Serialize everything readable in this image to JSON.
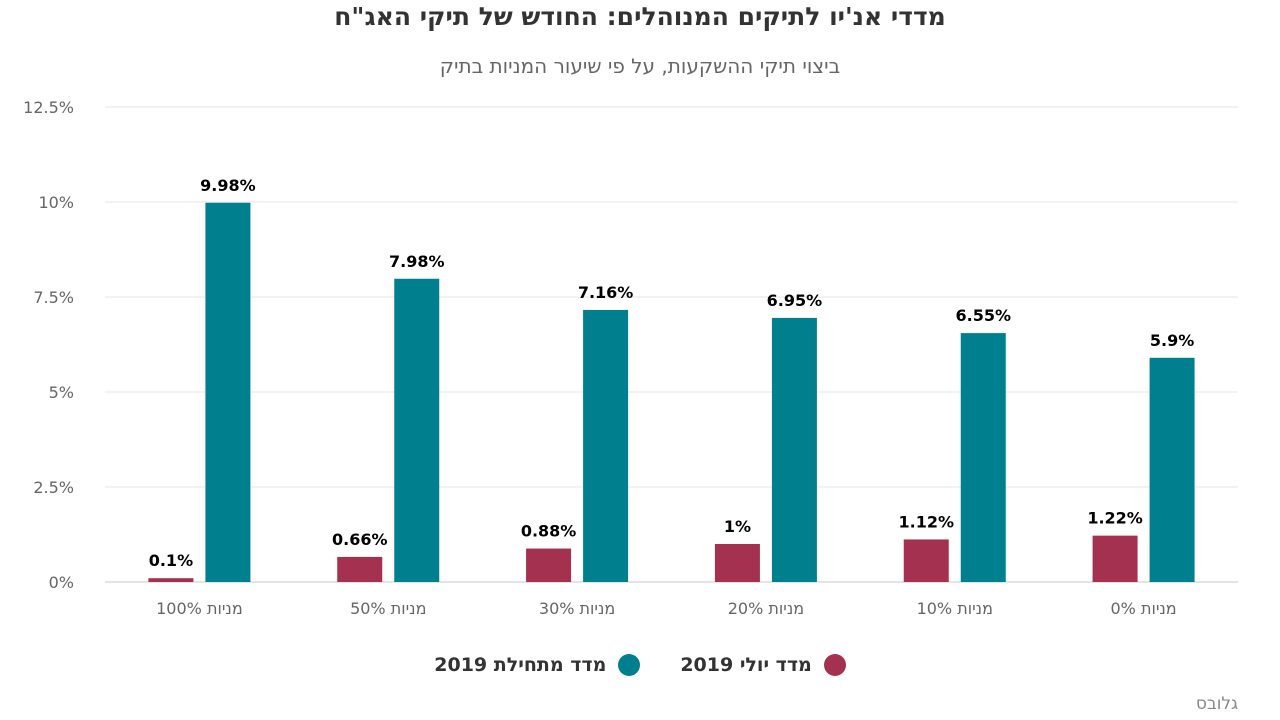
{
  "chart_data": {
    "type": "bar",
    "title": "מדדי אנ'יו לתיקים המנוהלים: החודש של תיקי האג\"ח",
    "subtitle": "ביצוי תיקי ההשקעות, על פי שיעור המניות בתיק",
    "categories": [
      "מניות 100%",
      "מניות 50%",
      "מניות 30%",
      "מניות 20%",
      "מניות 10%",
      "מניות 0%"
    ],
    "series": [
      {
        "name": "מדד יולי 2019",
        "color": "#a3314f",
        "values": [
          0.1,
          0.66,
          0.88,
          1.0,
          1.12,
          1.22
        ],
        "labels": [
          "0.1%",
          "0.66%",
          "0.88%",
          "1%",
          "1.12%",
          "1.22%"
        ]
      },
      {
        "name": "מדד מתחילת 2019",
        "color": "#00808f",
        "values": [
          9.98,
          7.98,
          7.16,
          6.95,
          6.55,
          5.9
        ],
        "labels": [
          "9.98%",
          "7.98%",
          "7.16%",
          "6.95%",
          "6.55%",
          "5.9%"
        ]
      }
    ],
    "yticks": [
      "0%",
      "2.5%",
      "5%",
      "7.5%",
      "10%",
      "12.5%"
    ],
    "ytick_values": [
      0,
      2.5,
      5,
      7.5,
      10,
      12.5
    ],
    "ylim": [
      0,
      12.5
    ],
    "grid": true,
    "legend": "bottom-center",
    "xlabel": "",
    "ylabel": ""
  },
  "source": "גלובס"
}
